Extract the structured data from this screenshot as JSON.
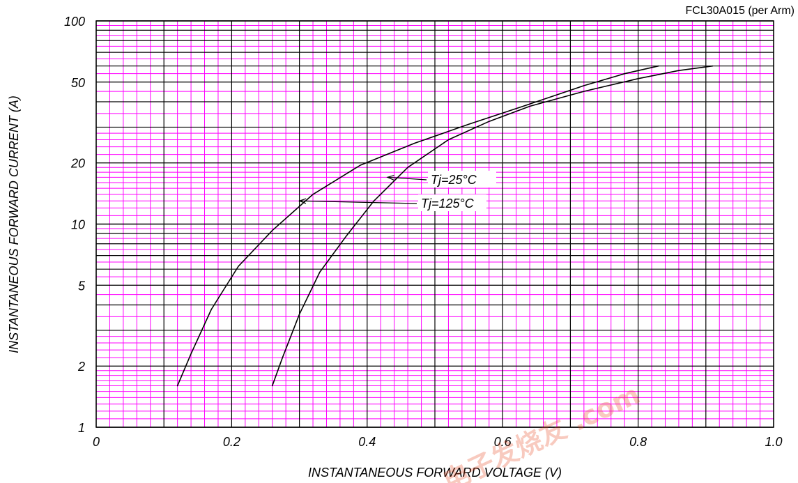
{
  "chart_data": {
    "type": "line",
    "title": "FCL30A015 (per Arm)",
    "xlabel": "INSTANTANEOUS FORWARD VOLTAGE (V)",
    "ylabel": "INSTANTANEOUS FORWARD CURRENT (A)",
    "xlim": [
      0,
      1.0
    ],
    "ylim": [
      1,
      100
    ],
    "yscale": "log",
    "grid": true,
    "x_ticks": [
      0,
      0.2,
      0.4,
      0.6,
      0.8,
      1.0
    ],
    "x_tick_labels": [
      "0",
      "0.2",
      "0.4",
      "0.6",
      "0.8",
      "1.0"
    ],
    "y_ticks": [
      1,
      2,
      5,
      10,
      20,
      50,
      100
    ],
    "y_tick_labels": [
      "1",
      "2",
      "5",
      "10",
      "20",
      "50",
      "100"
    ],
    "series": [
      {
        "name": "Tj=25°C",
        "x": [
          0.26,
          0.275,
          0.3,
          0.33,
          0.37,
          0.41,
          0.46,
          0.52,
          0.58,
          0.64,
          0.72,
          0.8,
          0.86,
          0.91
        ],
        "y": [
          1.6,
          2.2,
          3.6,
          5.8,
          8.8,
          13,
          19,
          26,
          32,
          38,
          45,
          52,
          57,
          60
        ]
      },
      {
        "name": "Tj=125°C",
        "x": [
          0.12,
          0.14,
          0.17,
          0.21,
          0.26,
          0.32,
          0.39,
          0.47,
          0.55,
          0.63,
          0.72,
          0.78,
          0.83
        ],
        "y": [
          1.6,
          2.3,
          3.8,
          6.2,
          9.3,
          14,
          19.5,
          25,
          31,
          38,
          48,
          55,
          60
        ]
      }
    ],
    "annotations": [
      {
        "text": "Tj=25°C",
        "series": 0,
        "target_x": 0.43,
        "target_y": 17
      },
      {
        "text": "Tj=125°C",
        "series": 1,
        "target_x": 0.3,
        "target_y": 13
      }
    ],
    "colors": {
      "major_grid": "#000000",
      "minor_grid": "#ff00ff",
      "line": "#000000"
    },
    "watermark": "电子发烧友 .com"
  }
}
